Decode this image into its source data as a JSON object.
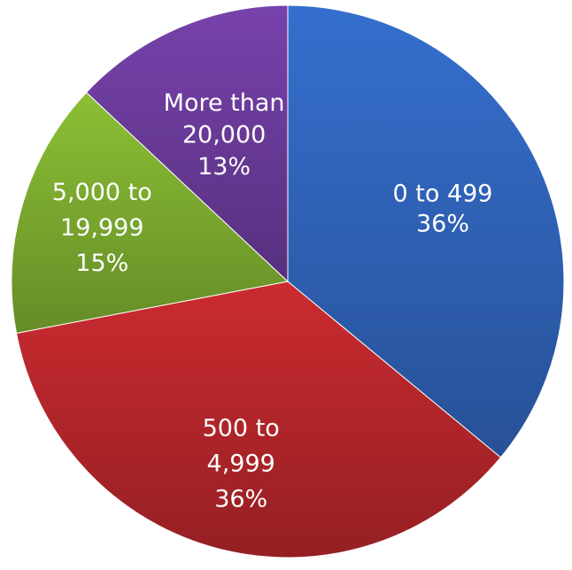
{
  "chart_data": {
    "type": "pie",
    "categories": [
      "0 to 499",
      "500 to 4,999",
      "5,000 to 19,999",
      "More than 20,000"
    ],
    "values": [
      36,
      36,
      15,
      13
    ],
    "unit": "%",
    "colors": [
      "#2f63b8",
      "#b5262b",
      "#7cab2f",
      "#6a3b9a"
    ],
    "labels": [
      {
        "lines": [
          "0 to 499",
          "36%"
        ]
      },
      {
        "lines": [
          "500 to",
          "4,999",
          "36%"
        ]
      },
      {
        "lines": [
          "5,000 to",
          "19,999",
          "15%"
        ]
      },
      {
        "lines": [
          "More than",
          "20,000",
          "13%"
        ]
      }
    ],
    "start_angle": "12 o'clock",
    "direction": "clockwise",
    "legend": "none"
  }
}
